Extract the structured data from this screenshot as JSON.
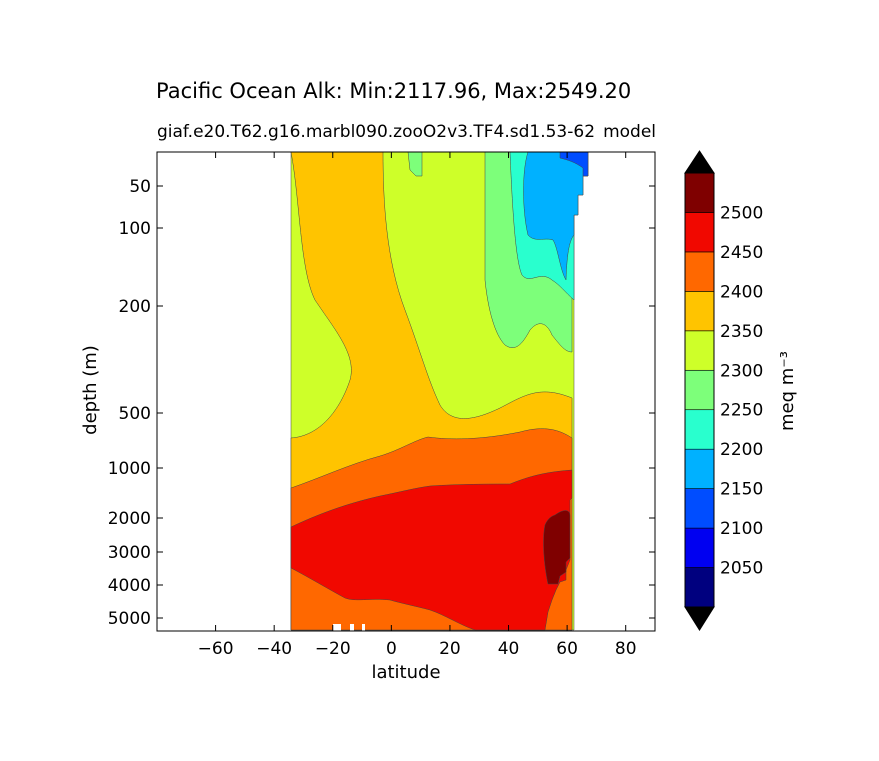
{
  "chart_data": {
    "type": "contour",
    "title": "Pacific Ocean Alk: Min:2117.96, Max:2549.20",
    "subtitle_left": "giaf.e20.T62.g16.marbl090.zooO2v3.TF4.sd1.53-62",
    "subtitle_right": "model",
    "xlabel": "latitude",
    "ylabel": "depth (m)",
    "xlim": [
      -80,
      90
    ],
    "x_ticks": [
      -60,
      -40,
      -20,
      0,
      20,
      40,
      60,
      80
    ],
    "x_tick_labels": [
      "−60",
      "−40",
      "−20",
      "0",
      "20",
      "40",
      "60",
      "80"
    ],
    "y_scale": "nonlinear (depth stretched)",
    "y_ticks": [
      50,
      100,
      200,
      500,
      1000,
      2000,
      3000,
      4000,
      5000
    ],
    "y_tick_labels": [
      "50",
      "100",
      "200",
      "500",
      "1000",
      "2000",
      "3000",
      "4000",
      "5000"
    ],
    "colorbar": {
      "label": "meq m⁻³",
      "levels": [
        2000,
        2050,
        2100,
        2150,
        2200,
        2250,
        2300,
        2350,
        2400,
        2450,
        2500,
        2550
      ],
      "tick_labels": [
        "2050",
        "2100",
        "2150",
        "2200",
        "2250",
        "2300",
        "2350",
        "2400",
        "2450",
        "2500"
      ],
      "colors": [
        "#00007f",
        "#0000f1",
        "#004dff",
        "#00b1ff",
        "#29ffce",
        "#7dff7a",
        "#ceff29",
        "#ffc400",
        "#ff6800",
        "#f10800",
        "#7f0000"
      ],
      "extend": "both",
      "extend_colors": [
        "#000000",
        "#000000"
      ]
    },
    "data_extent": {
      "lat_min": -34,
      "lat_max": 67
    },
    "regions": [
      {
        "band": "2300-2350",
        "color": "#ceff29"
      },
      {
        "band": "2350-2400",
        "color": "#ffc400"
      },
      {
        "band": "2400-2450",
        "color": "#ff6800"
      },
      {
        "band": "2450-2500",
        "color": "#f10800"
      },
      {
        "band": "2500-2550",
        "color": "#7f0000"
      },
      {
        "band": "2250-2300",
        "color": "#7dff7a"
      },
      {
        "band": "2200-2250",
        "color": "#29ffce"
      },
      {
        "band": "2150-2200",
        "color": "#00b1ff"
      },
      {
        "band": "2100-2150",
        "color": "#004dff"
      }
    ]
  }
}
